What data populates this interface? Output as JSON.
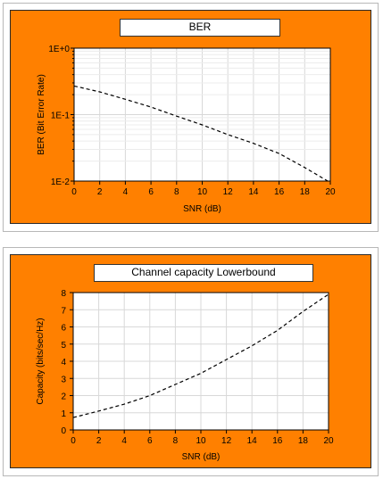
{
  "charts": [
    {
      "title": "BER",
      "xlabel": "SNR (dB)",
      "ylabel": "BER (Bit Error Rate)",
      "x_ticks": [
        "0",
        "2",
        "4",
        "6",
        "8",
        "10",
        "12",
        "14",
        "16",
        "18",
        "20"
      ],
      "y_ticks": [
        "1E-2",
        "1E-1",
        "1E+0"
      ]
    },
    {
      "title": "Channel capacity Lowerbound",
      "xlabel": "SNR (dB)",
      "ylabel": "Capacity (bits/sec/Hz)",
      "x_ticks": [
        "0",
        "2",
        "4",
        "6",
        "8",
        "10",
        "12",
        "14",
        "16",
        "18",
        "20"
      ],
      "y_ticks": [
        "0",
        "1",
        "2",
        "3",
        "4",
        "5",
        "6",
        "7",
        "8"
      ]
    }
  ],
  "chart_data": [
    {
      "type": "line",
      "title": "BER",
      "xlabel": "SNR (dB)",
      "ylabel": "BER (Bit Error Rate)",
      "y_scale": "log",
      "xlim": [
        0,
        20
      ],
      "ylim": [
        0.01,
        1
      ],
      "grid": true,
      "line_style": "dashed",
      "line_color": "#000000",
      "background": "#ff8000",
      "series": [
        {
          "x": [
            0,
            2,
            4,
            6,
            8,
            10,
            12,
            14,
            16,
            18,
            20
          ],
          "y": [
            0.27,
            0.22,
            0.17,
            0.13,
            0.095,
            0.07,
            0.05,
            0.037,
            0.026,
            0.016,
            0.0095
          ]
        }
      ]
    },
    {
      "type": "line",
      "title": "Channel capacity Lowerbound",
      "xlabel": "SNR (dB)",
      "ylabel": "Capacity (bits/sec/Hz)",
      "xlim": [
        0,
        20
      ],
      "ylim": [
        0,
        8
      ],
      "grid": true,
      "line_style": "dashed",
      "line_color": "#000000",
      "background": "#ff8000",
      "series": [
        {
          "x": [
            0,
            2,
            4,
            6,
            8,
            10,
            12,
            14,
            16,
            18,
            20
          ],
          "y": [
            0.72,
            1.1,
            1.5,
            2.0,
            2.65,
            3.3,
            4.1,
            4.9,
            5.8,
            6.9,
            7.9
          ]
        }
      ]
    }
  ]
}
